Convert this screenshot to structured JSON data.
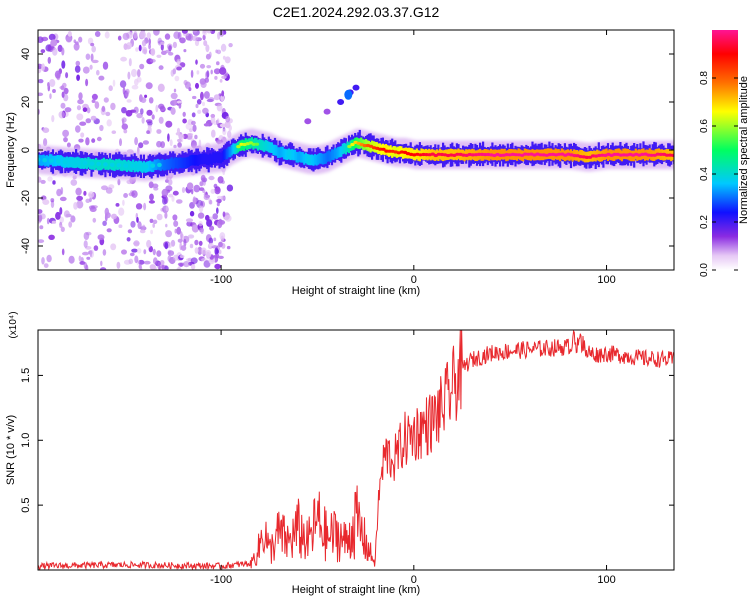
{
  "title": "C2E1.2024.292.03.37.G12",
  "colors": {
    "snr_line": "#e8282d",
    "axes": "#000000",
    "colormap": [
      "#ffffff",
      "#e6c8f5",
      "#8a2be2",
      "#1010ff",
      "#00c8ff",
      "#00ff60",
      "#ffff00",
      "#ff7000",
      "#ff0000",
      "#ff1493"
    ]
  },
  "chart_data": [
    {
      "type": "heatmap",
      "xlabel": "Height of straight line (km)",
      "ylabel": "Frequency (Hz)",
      "xlim": [
        -195,
        135
      ],
      "ylim": [
        -50,
        50
      ],
      "xticks": [
        -100,
        0,
        100
      ],
      "xtick_labels": [
        "-100",
        "0",
        "100"
      ],
      "yticks": [
        40,
        20,
        0,
        -20,
        -40
      ],
      "ytick_labels": [
        "40",
        "20",
        "0",
        "-20",
        "-40"
      ],
      "colorbar": {
        "label": "Normalized spectral amplitude",
        "range": [
          0,
          1
        ],
        "ticks": [
          0.0,
          0.2,
          0.4,
          0.6,
          0.8
        ],
        "tick_labels": [
          "0.0",
          "0.2",
          "0.4",
          "0.6",
          "0.8"
        ]
      },
      "ridge": {
        "x": [
          -195,
          -180,
          -160,
          -140,
          -130,
          -120,
          -110,
          -100,
          -95,
          -90,
          -85,
          -80,
          -75,
          -70,
          -65,
          -60,
          -55,
          -50,
          -45,
          -40,
          -35,
          -30,
          -25,
          -20,
          -15,
          -10,
          -5,
          0,
          10,
          20,
          40,
          60,
          80,
          90,
          100,
          110,
          120,
          135
        ],
        "y": [
          -4,
          -5,
          -6,
          -7,
          -6,
          -5,
          -4,
          -3,
          0,
          2,
          3,
          2,
          1,
          -1,
          -2,
          -3,
          -4,
          -4,
          -3,
          -1,
          1,
          3,
          2,
          1,
          0,
          -1,
          -1,
          -2,
          -2,
          -2,
          -2,
          -2,
          -2,
          -3,
          -2,
          -2,
          -2,
          -2
        ],
        "amplitude": [
          0.45,
          0.5,
          0.55,
          0.5,
          0.4,
          0.35,
          0.3,
          0.3,
          0.45,
          0.65,
          0.6,
          0.55,
          0.5,
          0.45,
          0.5,
          0.45,
          0.5,
          0.45,
          0.4,
          0.45,
          0.55,
          0.7,
          0.8,
          0.85,
          0.9,
          0.85,
          0.9,
          0.9,
          0.95,
          0.95,
          1.0,
          1.0,
          1.0,
          0.95,
          1.0,
          1.0,
          1.0,
          0.95
        ]
      },
      "feature_branch": {
        "x": [
          -55,
          -45,
          -38,
          -33,
          -30
        ],
        "y": [
          12,
          16,
          20,
          24,
          26
        ]
      },
      "noise_region_x": [
        -195,
        -95
      ]
    },
    {
      "type": "line",
      "xlabel": "Height of straight line (km)",
      "ylabel": "SNR (10 * v/v)",
      "y_multiplier": "(x10⁴)",
      "xlim": [
        -195,
        135
      ],
      "ylim": [
        0,
        1.85
      ],
      "xticks": [
        -100,
        0,
        100
      ],
      "xtick_labels": [
        "-100",
        "0",
        "100"
      ],
      "yticks": [
        0.5,
        1.0,
        1.5
      ],
      "ytick_labels": [
        "0.5",
        "1.0",
        "1.5"
      ],
      "series": [
        {
          "x": [
            -195,
            -150,
            -100,
            -85,
            -80,
            -78,
            -75,
            -70,
            -65,
            -60,
            -55,
            -50,
            -45,
            -40,
            -35,
            -30,
            -25,
            -22,
            -20,
            -18,
            -15,
            -10,
            -5,
            0,
            5,
            10,
            15,
            20,
            25,
            30,
            40,
            50,
            60,
            70,
            80,
            87,
            90,
            95,
            100,
            110,
            120,
            135
          ],
          "y": [
            0.03,
            0.04,
            0.03,
            0.05,
            0.25,
            0.5,
            0.2,
            0.4,
            0.3,
            0.45,
            0.3,
            0.55,
            0.35,
            0.4,
            0.3,
            0.55,
            0.3,
            0.15,
            0.1,
            0.6,
            0.9,
            0.85,
            1.0,
            1.05,
            1.1,
            1.15,
            1.25,
            1.4,
            1.55,
            1.62,
            1.67,
            1.69,
            1.7,
            1.71,
            1.72,
            1.75,
            1.68,
            1.66,
            1.67,
            1.65,
            1.63,
            1.62
          ]
        }
      ]
    }
  ]
}
